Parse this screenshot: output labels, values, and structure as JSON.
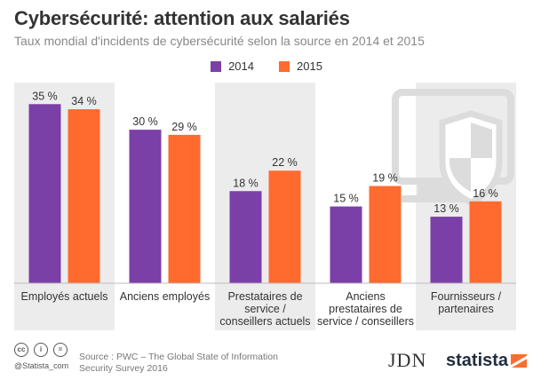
{
  "header": {
    "title": "Cybersécurité: attention aux salariés",
    "subtitle": "Taux mondial d'incidents de cybersécurité selon la source en 2014 et 2015"
  },
  "colors": {
    "series_2014": "#7b3fa8",
    "series_2015": "#ff6a2f",
    "band": "#ececec",
    "icon": "#dcdcdc"
  },
  "chart_data": {
    "type": "bar",
    "categories": [
      [
        "Employés actuels"
      ],
      [
        "Anciens employés"
      ],
      [
        "Prestataires de",
        "service /",
        "conseillers actuels"
      ],
      [
        "Anciens",
        "prestataires de",
        "service / conseillers"
      ],
      [
        "Fournisseurs /",
        "partenaires"
      ]
    ],
    "series": [
      {
        "name": "2014",
        "values": [
          35,
          30,
          18,
          15,
          13
        ],
        "labels": [
          "35 %",
          "30 %",
          "18 %",
          "15 %",
          "13 %"
        ]
      },
      {
        "name": "2015",
        "values": [
          34,
          29,
          22,
          19,
          16
        ],
        "labels": [
          "34 %",
          "29 %",
          "22 %",
          "19 %",
          "16 %"
        ]
      }
    ],
    "ylim": [
      0,
      38
    ],
    "legend_position": "top-center",
    "background_icon": "monitor-shield-icon"
  },
  "footer": {
    "license_icons": [
      "cc",
      "i",
      "="
    ],
    "handle": "@Statista_com",
    "source_lines": [
      "Source : PWC – The Global State of Information",
      "Security Survey 2016"
    ],
    "jdn_logo": "JDN",
    "statista_logo": "statista"
  }
}
